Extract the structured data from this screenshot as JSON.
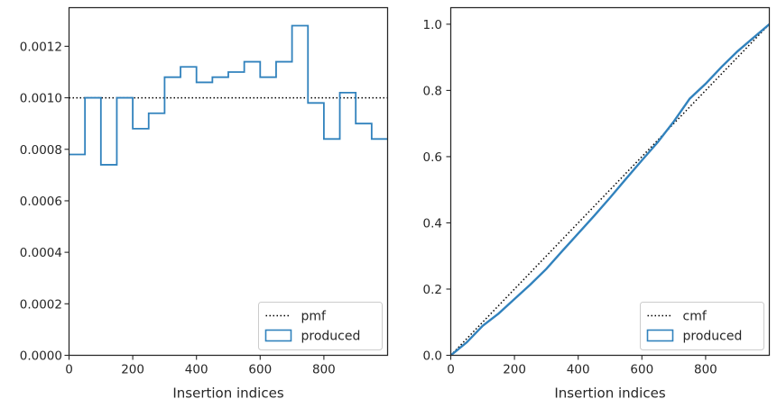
{
  "chart_data": [
    {
      "type": "step",
      "xlabel": "Insertion indices",
      "ylabel": "",
      "xlim": [
        0,
        1000
      ],
      "ylim": [
        0,
        0.00135
      ],
      "xticks": [
        "0",
        "200",
        "400",
        "600",
        "800"
      ],
      "xtick_values": [
        0,
        200,
        400,
        600,
        800
      ],
      "yticks": [
        "0.0000",
        "0.0002",
        "0.0004",
        "0.0006",
        "0.0008",
        "0.0010",
        "0.0012"
      ],
      "ytick_values": [
        0,
        0.0002,
        0.0004,
        0.0006,
        0.0008,
        0.001,
        0.0012
      ],
      "legend_position": "lower-right",
      "reference": {
        "name": "pmf",
        "value": 0.001,
        "style": "dotted",
        "color": "#000000"
      },
      "series": [
        {
          "name": "produced",
          "color": "#3182bd",
          "bin_edges": [
            0,
            50,
            100,
            150,
            200,
            250,
            300,
            350,
            400,
            450,
            500,
            550,
            600,
            650,
            700,
            750,
            800,
            850,
            900,
            950,
            1000
          ],
          "values": [
            0.00078,
            0.001,
            0.00074,
            0.001,
            0.00088,
            0.00094,
            0.00108,
            0.00112,
            0.00106,
            0.00108,
            0.0011,
            0.00114,
            0.00108,
            0.00114,
            0.00128,
            0.00098,
            0.00084,
            0.00102,
            0.0009,
            0.00084
          ]
        }
      ]
    },
    {
      "type": "line",
      "xlabel": "Insertion indices",
      "ylabel": "",
      "xlim": [
        0,
        1000
      ],
      "ylim": [
        0,
        1.05
      ],
      "xticks": [
        "0",
        "200",
        "400",
        "600",
        "800"
      ],
      "xtick_values": [
        0,
        200,
        400,
        600,
        800
      ],
      "yticks": [
        "0.0",
        "0.2",
        "0.4",
        "0.6",
        "0.8",
        "1.0"
      ],
      "ytick_values": [
        0,
        0.2,
        0.4,
        0.6,
        0.8,
        1.0
      ],
      "legend_position": "lower-right",
      "reference": {
        "name": "cmf",
        "x": [
          0,
          1000
        ],
        "y": [
          0,
          1.0
        ],
        "style": "dotted",
        "color": "#000000"
      },
      "series": [
        {
          "name": "produced",
          "color": "#3182bd",
          "x": [
            0,
            50,
            100,
            150,
            200,
            250,
            300,
            350,
            400,
            450,
            500,
            550,
            600,
            650,
            700,
            750,
            800,
            850,
            900,
            950,
            1000
          ],
          "y": [
            0,
            0.039,
            0.089,
            0.126,
            0.17,
            0.214,
            0.261,
            0.315,
            0.368,
            0.421,
            0.476,
            0.533,
            0.589,
            0.644,
            0.706,
            0.775,
            0.82,
            0.871,
            0.918,
            0.959,
            1.0
          ]
        }
      ]
    }
  ]
}
